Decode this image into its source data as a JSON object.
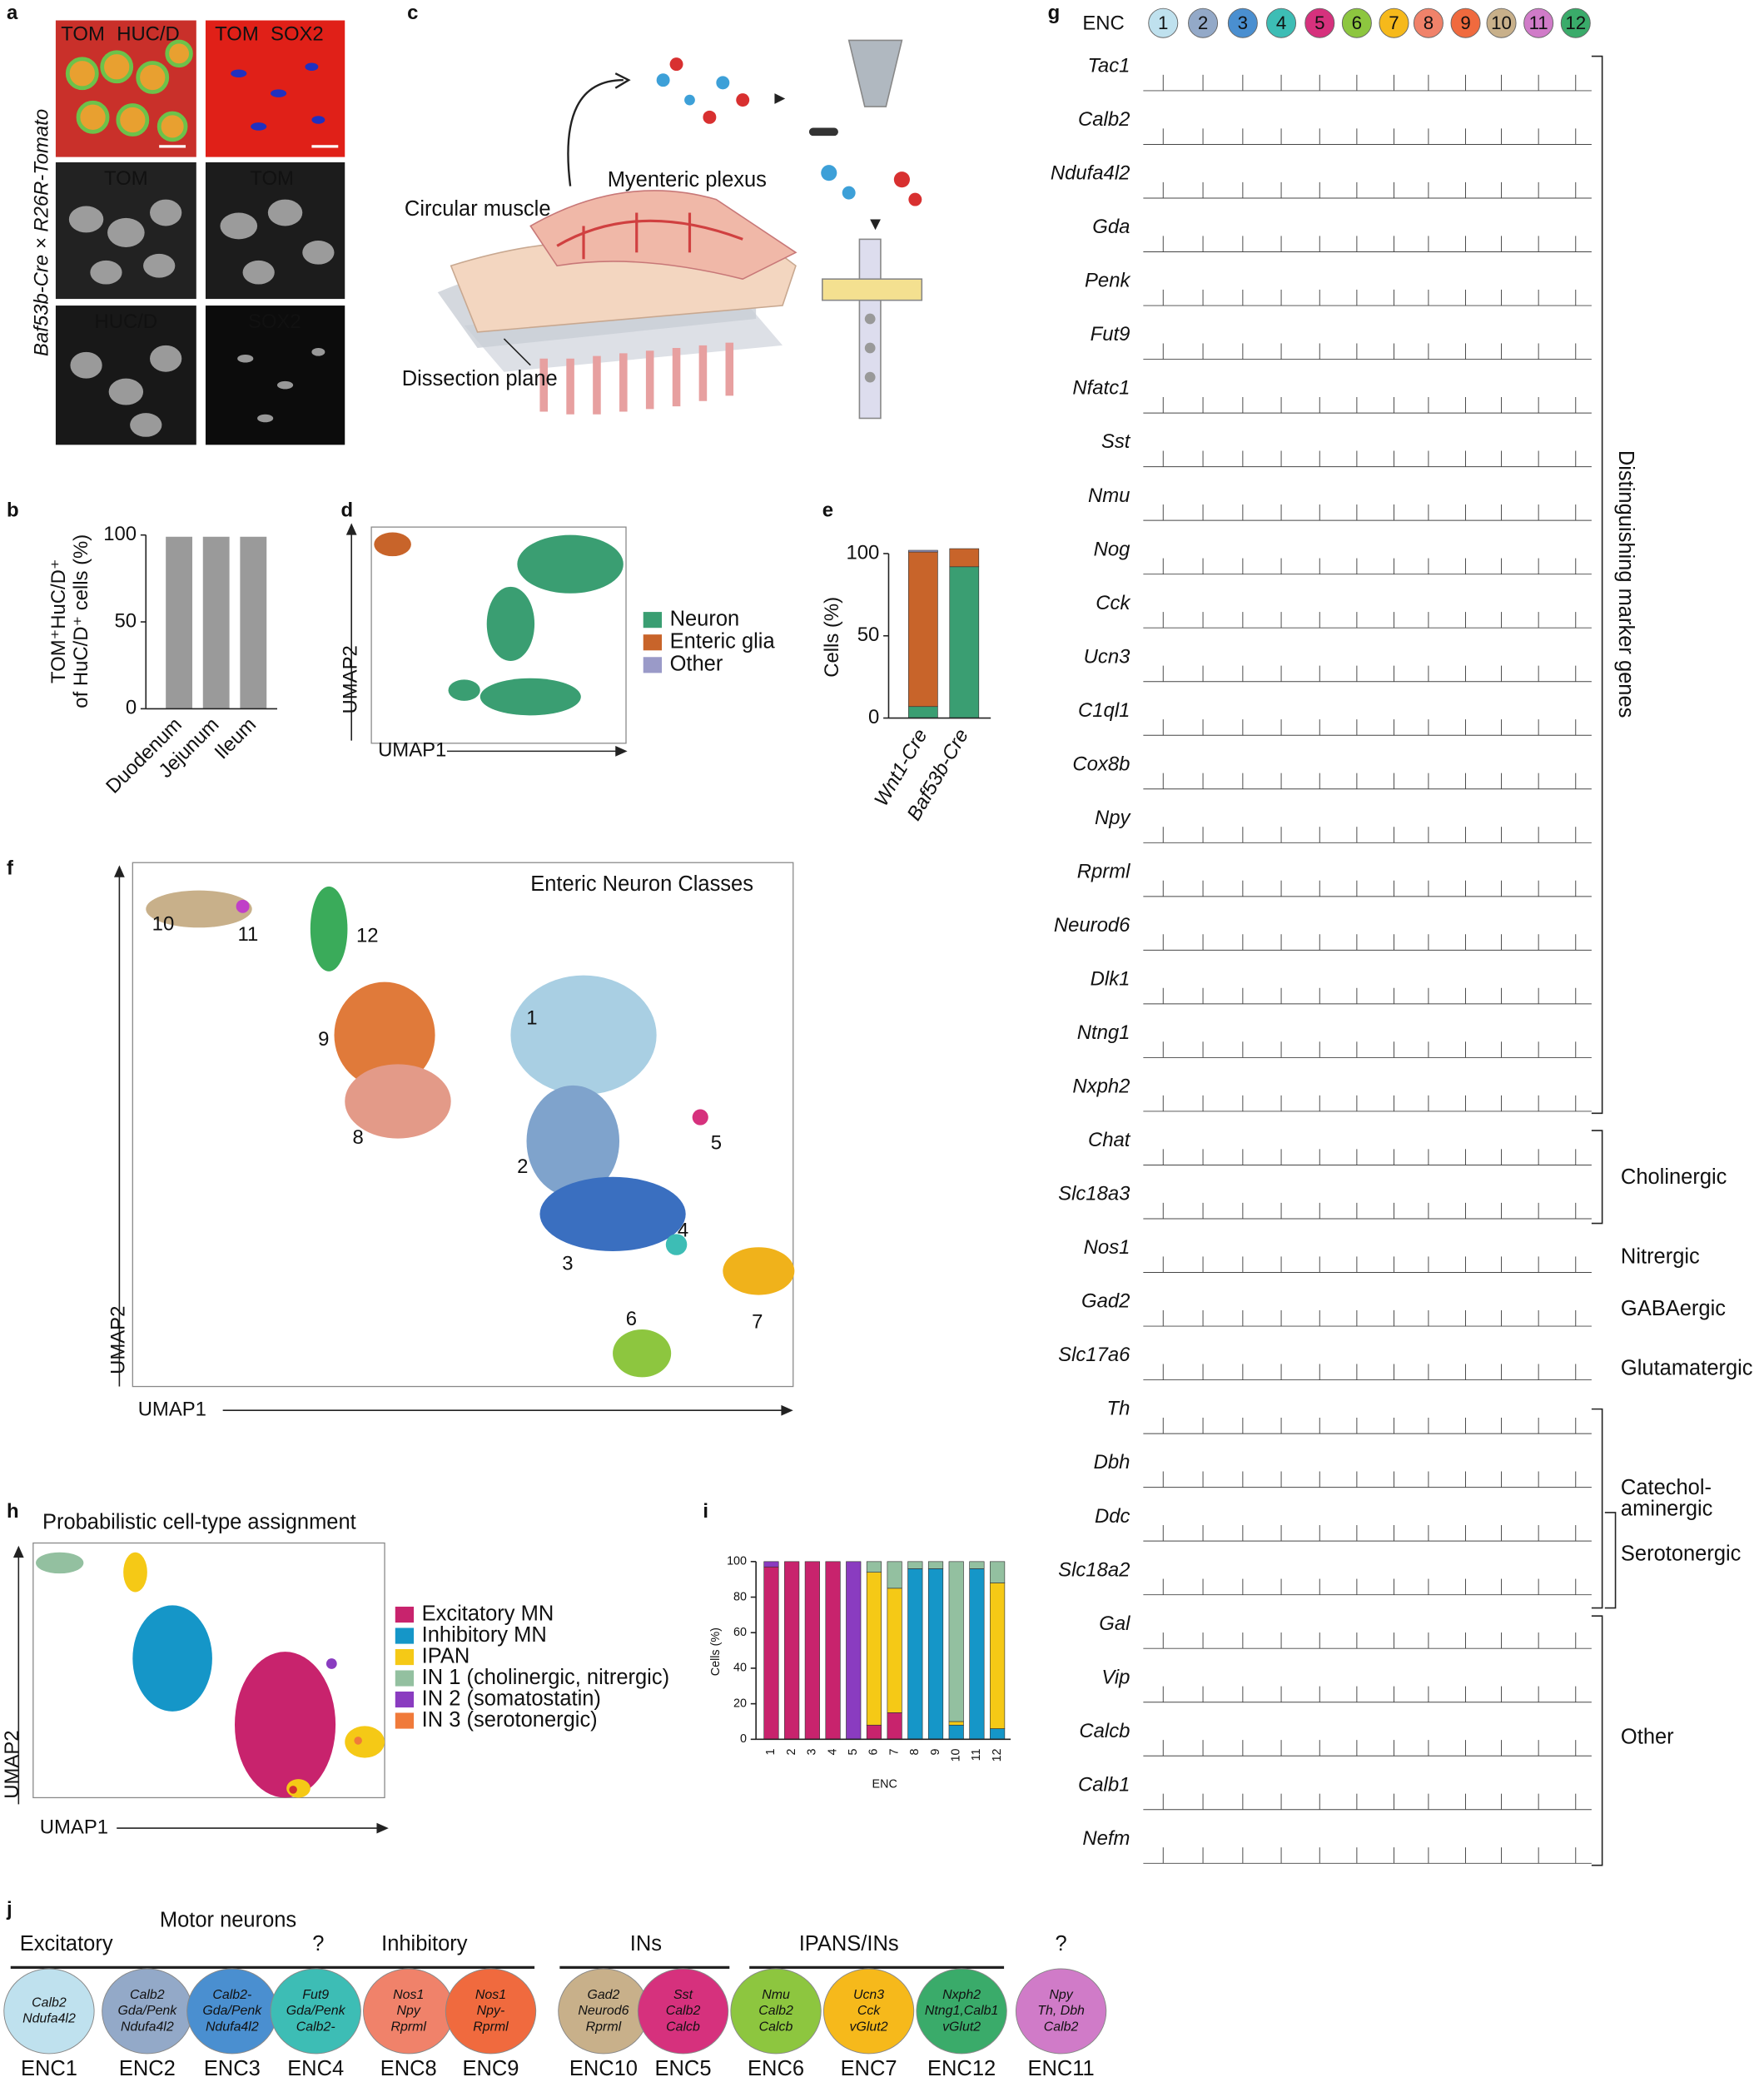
{
  "panel_letters": [
    "a",
    "b",
    "c",
    "d",
    "e",
    "f",
    "g",
    "h",
    "i",
    "j"
  ],
  "panel_a": {
    "top_left": [
      "TOM",
      "HUC/D"
    ],
    "top_right": [
      "TOM",
      "SOX2"
    ],
    "mid_left": "TOM",
    "mid_right": "TOM",
    "bottom_left": "HUC/D",
    "bottom_right": "SOX2",
    "side_label": "Baf53b-Cre × R26R-Tomato"
  },
  "panel_c": {
    "labels": [
      "Circular muscle",
      "Myenteric plexus",
      "Dissection plane"
    ]
  },
  "panel_d": {
    "xlabel": "UMAP1",
    "ylabel": "UMAP2"
  },
  "panel_f": {
    "title": "Enteric Neuron Classes",
    "xlabel": "UMAP1",
    "ylabel": "UMAP2",
    "clusters": [
      {
        "label": "10",
        "color": "#c8b08a"
      },
      {
        "label": "11",
        "color": "#c040c8"
      },
      {
        "label": "12",
        "color": "#3aab5a"
      },
      {
        "label": "9",
        "color": "#e07a3a"
      },
      {
        "label": "8",
        "color": "#e39a88"
      },
      {
        "label": "1",
        "color": "#a9cfe3"
      },
      {
        "label": "2",
        "color": "#7fa3cc"
      },
      {
        "label": "3",
        "color": "#3a6fc0"
      },
      {
        "label": "4",
        "color": "#3dbdb5"
      },
      {
        "label": "5",
        "color": "#d6317d"
      },
      {
        "label": "6",
        "color": "#8dc63f"
      },
      {
        "label": "7",
        "color": "#f0b21b"
      }
    ]
  },
  "panel_g": {
    "header": "ENC",
    "columns": [
      "1",
      "2",
      "3",
      "4",
      "5",
      "6",
      "7",
      "8",
      "9",
      "10",
      "11",
      "12"
    ],
    "colors": [
      "#bfe1ee",
      "#93a9c8",
      "#4a8fd0",
      "#3dbdb5",
      "#d6317d",
      "#8dc63f",
      "#f6b91b",
      "#f0826a",
      "#f06a3e",
      "#c8b08a",
      "#d07bc8",
      "#3aab6a"
    ],
    "genes": [
      "Tac1",
      "Calb2",
      "Ndufa4l2",
      "Gda",
      "Penk",
      "Fut9",
      "Nfatc1",
      "Sst",
      "Nmu",
      "Nog",
      "Cck",
      "Ucn3",
      "C1ql1",
      "Cox8b",
      "Npy",
      "Rprml",
      "Neurod6",
      "Dlk1",
      "Ntng1",
      "Nxph2",
      "Chat",
      "Slc18a3",
      "Nos1",
      "Gad2",
      "Slc17a6",
      "Th",
      "Dbh",
      "Ddc",
      "Slc18a2",
      "Gal",
      "Vip",
      "Calcb",
      "Calb1",
      "Nefm"
    ],
    "groups": [
      "Distinguishing marker genes",
      "Cholinergic",
      "Nitrergic",
      "GABAergic",
      "Glutamatergic",
      "Catechol-",
      "aminergic",
      "Serotonergic",
      "Other"
    ]
  },
  "panel_h": {
    "title": "Probabilistic cell-type assignment",
    "xlabel": "UMAP1",
    "ylabel": "UMAP2"
  },
  "panel_j": {
    "header": "Motor neurons",
    "groups": [
      "Excitatory",
      "?",
      "Inhibitory",
      "INs",
      "IPANS/INs",
      "?"
    ],
    "cells": [
      {
        "name": "ENC1",
        "lines": [
          "Calb2",
          "Ndufa4l2"
        ],
        "color": "#bfe1ee"
      },
      {
        "name": "ENC2",
        "lines": [
          "Calb2",
          "Gda/Penk",
          "Ndufa4l2"
        ],
        "color": "#93a9c8"
      },
      {
        "name": "ENC3",
        "lines": [
          "Calb2-",
          "Gda/Penk",
          "Ndufa4l2"
        ],
        "color": "#4a8fd0"
      },
      {
        "name": "ENC4",
        "lines": [
          "Fut9",
          "Gda/Penk",
          "Calb2-"
        ],
        "color": "#3dbdb5"
      },
      {
        "name": "ENC8",
        "lines": [
          "Nos1",
          "Npy",
          "Rprml"
        ],
        "color": "#f0826a"
      },
      {
        "name": "ENC9",
        "lines": [
          "Nos1",
          "Npy-",
          "Rprml"
        ],
        "color": "#f06a3e"
      },
      {
        "name": "ENC10",
        "lines": [
          "Gad2",
          "Neurod6",
          "Rprml"
        ],
        "color": "#c8b08a"
      },
      {
        "name": "ENC5",
        "lines": [
          "Sst",
          "Calb2",
          "Calcb"
        ],
        "color": "#d6317d"
      },
      {
        "name": "ENC6",
        "lines": [
          "Nmu",
          "Calb2",
          "Calcb"
        ],
        "color": "#8dc63f"
      },
      {
        "name": "ENC7",
        "lines": [
          "Ucn3",
          "Cck",
          "vGlut2"
        ],
        "color": "#f6b91b"
      },
      {
        "name": "ENC12",
        "lines": [
          "Nxph2",
          "Ntng1,Calb1",
          "vGlut2"
        ],
        "color": "#3aab6a"
      },
      {
        "name": "ENC11",
        "lines": [
          "Npy",
          "Th, Dbh",
          "Calb2"
        ],
        "color": "#d07bc8"
      }
    ]
  },
  "chart_data": [
    {
      "type": "bar",
      "ylabel": [
        "TOM⁺HuC/D⁺",
        "of HuC/D⁺ cells (%)"
      ],
      "categories": [
        "Duodenum",
        "Jejunum",
        "Ileum"
      ],
      "values": [
        99,
        99,
        99
      ],
      "color": "#9a9a9a",
      "ylim": [
        0,
        100
      ],
      "yticks": [
        0,
        50,
        100
      ]
    },
    {
      "type": "bar",
      "stacked": true,
      "ylabel": [
        "Cells (%)"
      ],
      "categories": [
        "Wnt1-Cre",
        "Baf53b-Cre"
      ],
      "ylim": [
        0,
        100
      ],
      "yticks": [
        0,
        50,
        100
      ],
      "series": [
        {
          "name": "Neuron",
          "color": "#3a9e72",
          "values": [
            7,
            92
          ]
        },
        {
          "name": "Enteric glia",
          "color": "#c8642a",
          "values": [
            94,
            11
          ]
        },
        {
          "name": "Other",
          "color": "#9a9ac8",
          "values": [
            1,
            0
          ]
        }
      ]
    },
    {
      "type": "bar",
      "stacked": true,
      "ylabel": [
        "Cells (%)"
      ],
      "xlabel": "ENC",
      "categories": [
        "1",
        "2",
        "3",
        "4",
        "5",
        "6",
        "7",
        "8",
        "9",
        "10",
        "11",
        "12"
      ],
      "ylim": [
        0,
        100
      ],
      "yticks": [
        0,
        20,
        40,
        60,
        80,
        100
      ],
      "series": [
        {
          "name": "Excitatory MN",
          "color": "#c8236d",
          "values": [
            97,
            100,
            100,
            100,
            0,
            8,
            15,
            0,
            0,
            0,
            0,
            0
          ]
        },
        {
          "name": "Inhibitory MN",
          "color": "#1596c8",
          "values": [
            0,
            0,
            0,
            0,
            0,
            0,
            0,
            96,
            96,
            8,
            96,
            6
          ]
        },
        {
          "name": "IPAN",
          "color": "#f5c916",
          "values": [
            0,
            0,
            0,
            0,
            0,
            86,
            70,
            0,
            0,
            2,
            0,
            82
          ]
        },
        {
          "name": "IN 1 (cholinergic, nitrergic)",
          "color": "#93c0a0",
          "values": [
            0,
            0,
            0,
            0,
            0,
            6,
            15,
            4,
            4,
            90,
            4,
            12
          ]
        },
        {
          "name": "IN 2 (somatostatin)",
          "color": "#8a3cc0",
          "values": [
            3,
            0,
            0,
            0,
            100,
            0,
            0,
            0,
            0,
            0,
            0,
            0
          ]
        },
        {
          "name": "IN 3 (serotonergic)",
          "color": "#f07a3a",
          "values": [
            0,
            0,
            0,
            0,
            0,
            0,
            0,
            0,
            0,
            0,
            0,
            0
          ]
        }
      ]
    }
  ]
}
